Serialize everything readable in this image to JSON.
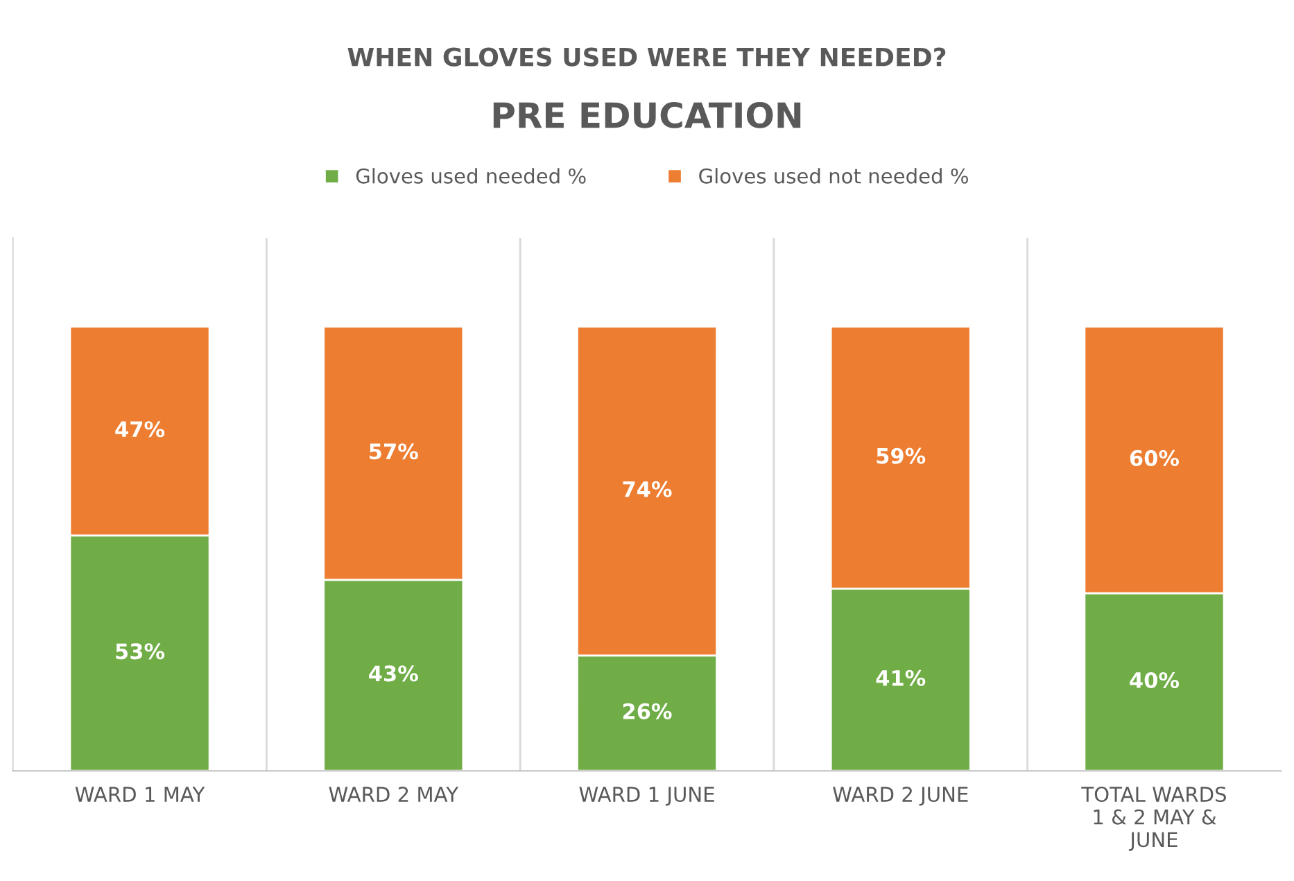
{
  "chart_data": {
    "type": "bar",
    "stacked": true,
    "title": "WHEN GLOVES USED WERE THEY NEEDED?",
    "subtitle": "PRE EDUCATION",
    "categories": [
      "WARD 1 MAY",
      "WARD 2 MAY",
      "WARD 1 JUNE",
      "WARD 2 JUNE",
      "TOTAL WARDS\n1 & 2 MAY &\nJUNE"
    ],
    "series": [
      {
        "name": "Gloves used needed %",
        "color": "#70ad47",
        "values": [
          53,
          43,
          26,
          41,
          40
        ],
        "value_labels": [
          "53%",
          "43%",
          "26%",
          "41%",
          "40%"
        ]
      },
      {
        "name": "Gloves used not needed %",
        "color": "#ed7d31",
        "values": [
          47,
          57,
          74,
          59,
          60
        ],
        "value_labels": [
          "47%",
          "57%",
          "74%",
          "59%",
          "60%"
        ]
      }
    ],
    "ylim": [
      0,
      120
    ],
    "tick_labels": "x",
    "grid": "x",
    "legend": "top"
  }
}
